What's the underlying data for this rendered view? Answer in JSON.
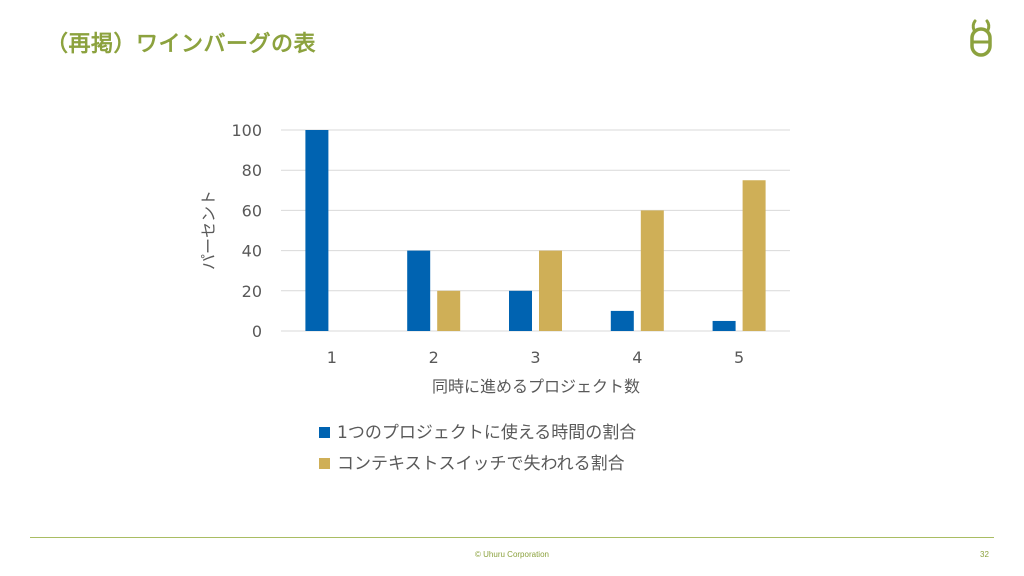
{
  "slide": {
    "title": "（再掲）ワインバーグの表",
    "copyright": "© Uhuru Corporation",
    "page_number": "32",
    "logo": "uhuru-logo-icon"
  },
  "colors": {
    "accent": "#8ca23e",
    "series1": "#0063b1",
    "series2": "#cfaf57",
    "grid": "#d9d9d9"
  },
  "chart_data": {
    "type": "bar",
    "categories": [
      "1",
      "2",
      "3",
      "4",
      "5"
    ],
    "series": [
      {
        "name": "1つのプロジェクトに使える時間の割合",
        "values": [
          100,
          40,
          20,
          10,
          5
        ]
      },
      {
        "name": "コンテキストスイッチで失われる割合",
        "values": [
          0,
          20,
          40,
          60,
          75
        ]
      }
    ],
    "xlabel": "同時に進めるプロジェクト数",
    "ylabel": "パーセント",
    "ylim": [
      0,
      100
    ],
    "yticks": [
      "0",
      "20",
      "40",
      "60",
      "80",
      "100"
    ],
    "grid": true,
    "legend_position": "bottom"
  }
}
